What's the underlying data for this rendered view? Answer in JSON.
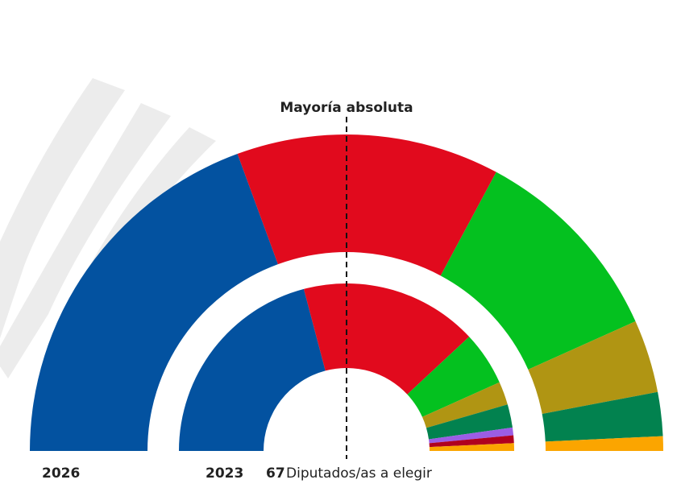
{
  "chart_data": {
    "type": "parliament",
    "majority_label": "Mayoría absoluta",
    "total_seats": 67,
    "total_label": "Diputados/as a elegir",
    "series": [
      {
        "name": "2026",
        "values": [
          26,
          18,
          14,
          5,
          3,
          1
        ],
        "colors": [
          "#0352a0",
          "#e10a1d",
          "#04c11f",
          "#b09513",
          "#02824f",
          "#fba500"
        ]
      },
      {
        "name": "2023",
        "values": [
          28,
          23,
          7,
          3,
          3,
          1,
          1,
          1
        ],
        "colors": [
          "#0352a0",
          "#e10a1d",
          "#04c11f",
          "#b09513",
          "#02824f",
          "#9b5de5",
          "#b0001f",
          "#fba500"
        ]
      }
    ]
  }
}
